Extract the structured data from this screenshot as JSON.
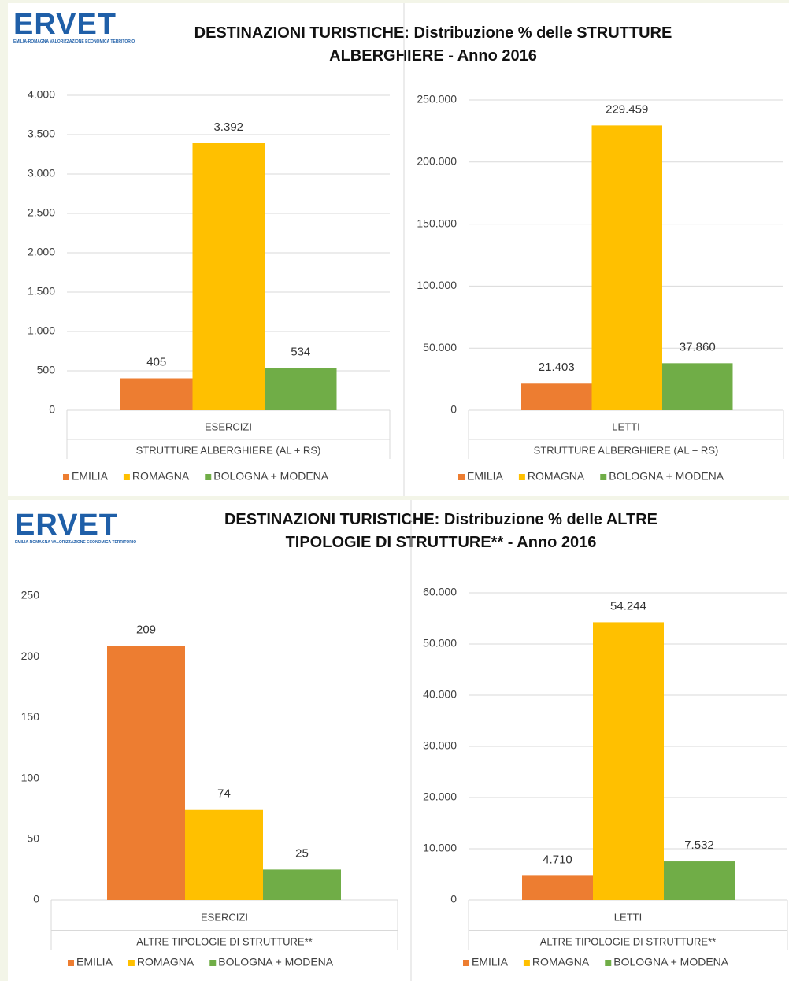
{
  "headers": [
    {
      "logo": "ERVET",
      "logo_tagline": "EMILIA-ROMAGNA VALORIZZAZIONE ECONOMICA TERRITORIO",
      "title": "DESTINAZIONI TURISTICHE: Distribuzione % delle STRUTTURE ALBERGHIERE - Anno 2016"
    },
    {
      "logo": "ERVET",
      "logo_tagline": "EMILIA-ROMAGNA VALORIZZAZIONE ECONOMICA TERRITORIO",
      "title": "DESTINAZIONI TURISTICHE: Distribuzione % delle ALTRE TIPOLOGIE DI STRUTTURE** - Anno 2016"
    }
  ],
  "chart_data": [
    {
      "type": "bar",
      "categories": [
        "ESERCIZI"
      ],
      "category_group": "STRUTTURE ALBERGHIERE (AL + RS)",
      "series": [
        {
          "name": "EMILIA",
          "color": "#ed7d31",
          "values": [
            405
          ]
        },
        {
          "name": "ROMAGNA",
          "color": "#ffc000",
          "values": [
            3392
          ],
          "value_labels": [
            "3.392"
          ]
        },
        {
          "name": "BOLOGNA + MODENA",
          "color": "#70ad47",
          "values": [
            534
          ]
        }
      ],
      "ylim": [
        0,
        4000
      ],
      "yticks": [
        0,
        500,
        {
          "value": 1000,
          "label": "1.000"
        },
        {
          "value": 1500,
          "label": "1.500"
        },
        {
          "value": 2000,
          "label": "2.000"
        },
        {
          "value": 2500,
          "label": "2.500"
        },
        {
          "value": 3000,
          "label": "3.000"
        },
        {
          "value": 3500,
          "label": "3.500"
        },
        {
          "value": 4000,
          "label": "4.000"
        }
      ],
      "grid": true,
      "legend": "bottom"
    },
    {
      "type": "bar",
      "categories": [
        "LETTI"
      ],
      "category_group": "STRUTTURE ALBERGHIERE (AL + RS)",
      "series": [
        {
          "name": "EMILIA",
          "color": "#ed7d31",
          "values": [
            21403
          ],
          "value_labels": [
            "21.403"
          ]
        },
        {
          "name": "ROMAGNA",
          "color": "#ffc000",
          "values": [
            229459
          ],
          "value_labels": [
            "229.459"
          ]
        },
        {
          "name": "BOLOGNA + MODENA",
          "color": "#70ad47",
          "values": [
            37860
          ],
          "value_labels": [
            "37.860"
          ]
        }
      ],
      "ylim": [
        0,
        250000
      ],
      "yticks": [
        0,
        {
          "value": 50000,
          "label": "50.000"
        },
        {
          "value": 100000,
          "label": "100.000"
        },
        {
          "value": 150000,
          "label": "150.000"
        },
        {
          "value": 200000,
          "label": "200.000"
        },
        {
          "value": 250000,
          "label": "250.000"
        }
      ],
      "grid": true,
      "legend": "bottom"
    },
    {
      "type": "bar",
      "categories": [
        "ESERCIZI"
      ],
      "category_group": "ALTRE TIPOLOGIE DI STRUTTURE**",
      "series": [
        {
          "name": "EMILIA",
          "color": "#ed7d31",
          "values": [
            209
          ]
        },
        {
          "name": "ROMAGNA",
          "color": "#ffc000",
          "values": [
            74
          ]
        },
        {
          "name": "BOLOGNA + MODENA",
          "color": "#70ad47",
          "values": [
            25
          ]
        }
      ],
      "ylim": [
        0,
        250
      ],
      "yticks": [
        0,
        50,
        100,
        150,
        200,
        250
      ],
      "grid": false,
      "legend": "bottom"
    },
    {
      "type": "bar",
      "categories": [
        "LETTI"
      ],
      "category_group": "ALTRE TIPOLOGIE DI STRUTTURE**",
      "series": [
        {
          "name": "EMILIA",
          "color": "#ed7d31",
          "values": [
            4710
          ],
          "value_labels": [
            "4.710"
          ]
        },
        {
          "name": "ROMAGNA",
          "color": "#ffc000",
          "values": [
            54244
          ],
          "value_labels": [
            "54.244"
          ]
        },
        {
          "name": "BOLOGNA + MODENA",
          "color": "#70ad47",
          "values": [
            7532
          ],
          "value_labels": [
            "7.532"
          ]
        }
      ],
      "ylim": [
        0,
        60000
      ],
      "yticks": [
        0,
        {
          "value": 10000,
          "label": "10.000"
        },
        {
          "value": 20000,
          "label": "20.000"
        },
        {
          "value": 30000,
          "label": "30.000"
        },
        {
          "value": 40000,
          "label": "40.000"
        },
        {
          "value": 50000,
          "label": "50.000"
        },
        {
          "value": 60000,
          "label": "60.000"
        }
      ],
      "grid": true,
      "legend": "bottom"
    }
  ]
}
